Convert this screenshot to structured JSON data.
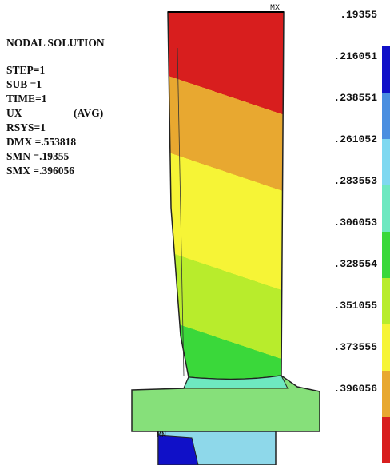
{
  "header": {
    "title": "NODAL SOLUTION"
  },
  "info": [
    "STEP=1",
    "SUB =1",
    "TIME=1",
    "UX",
    "(AVG)",
    "RSYS=1",
    "DMX =.553818",
    "SMN =.19355",
    "SMX =.396056"
  ],
  "markers": {
    "max": "MX",
    "min": "MN"
  },
  "legend": {
    "labels": [
      ".19355",
      ".216051",
      ".238551",
      ".261052",
      ".283553",
      ".306053",
      ".328554",
      ".351055",
      ".373555",
      ".396056"
    ],
    "colors": [
      "#1010c8",
      "#4a8ee0",
      "#7fd8f0",
      "#6ee8c0",
      "#3ad83a",
      "#b8ec2c",
      "#f6f436",
      "#e8a830",
      "#d81e1e"
    ]
  }
}
